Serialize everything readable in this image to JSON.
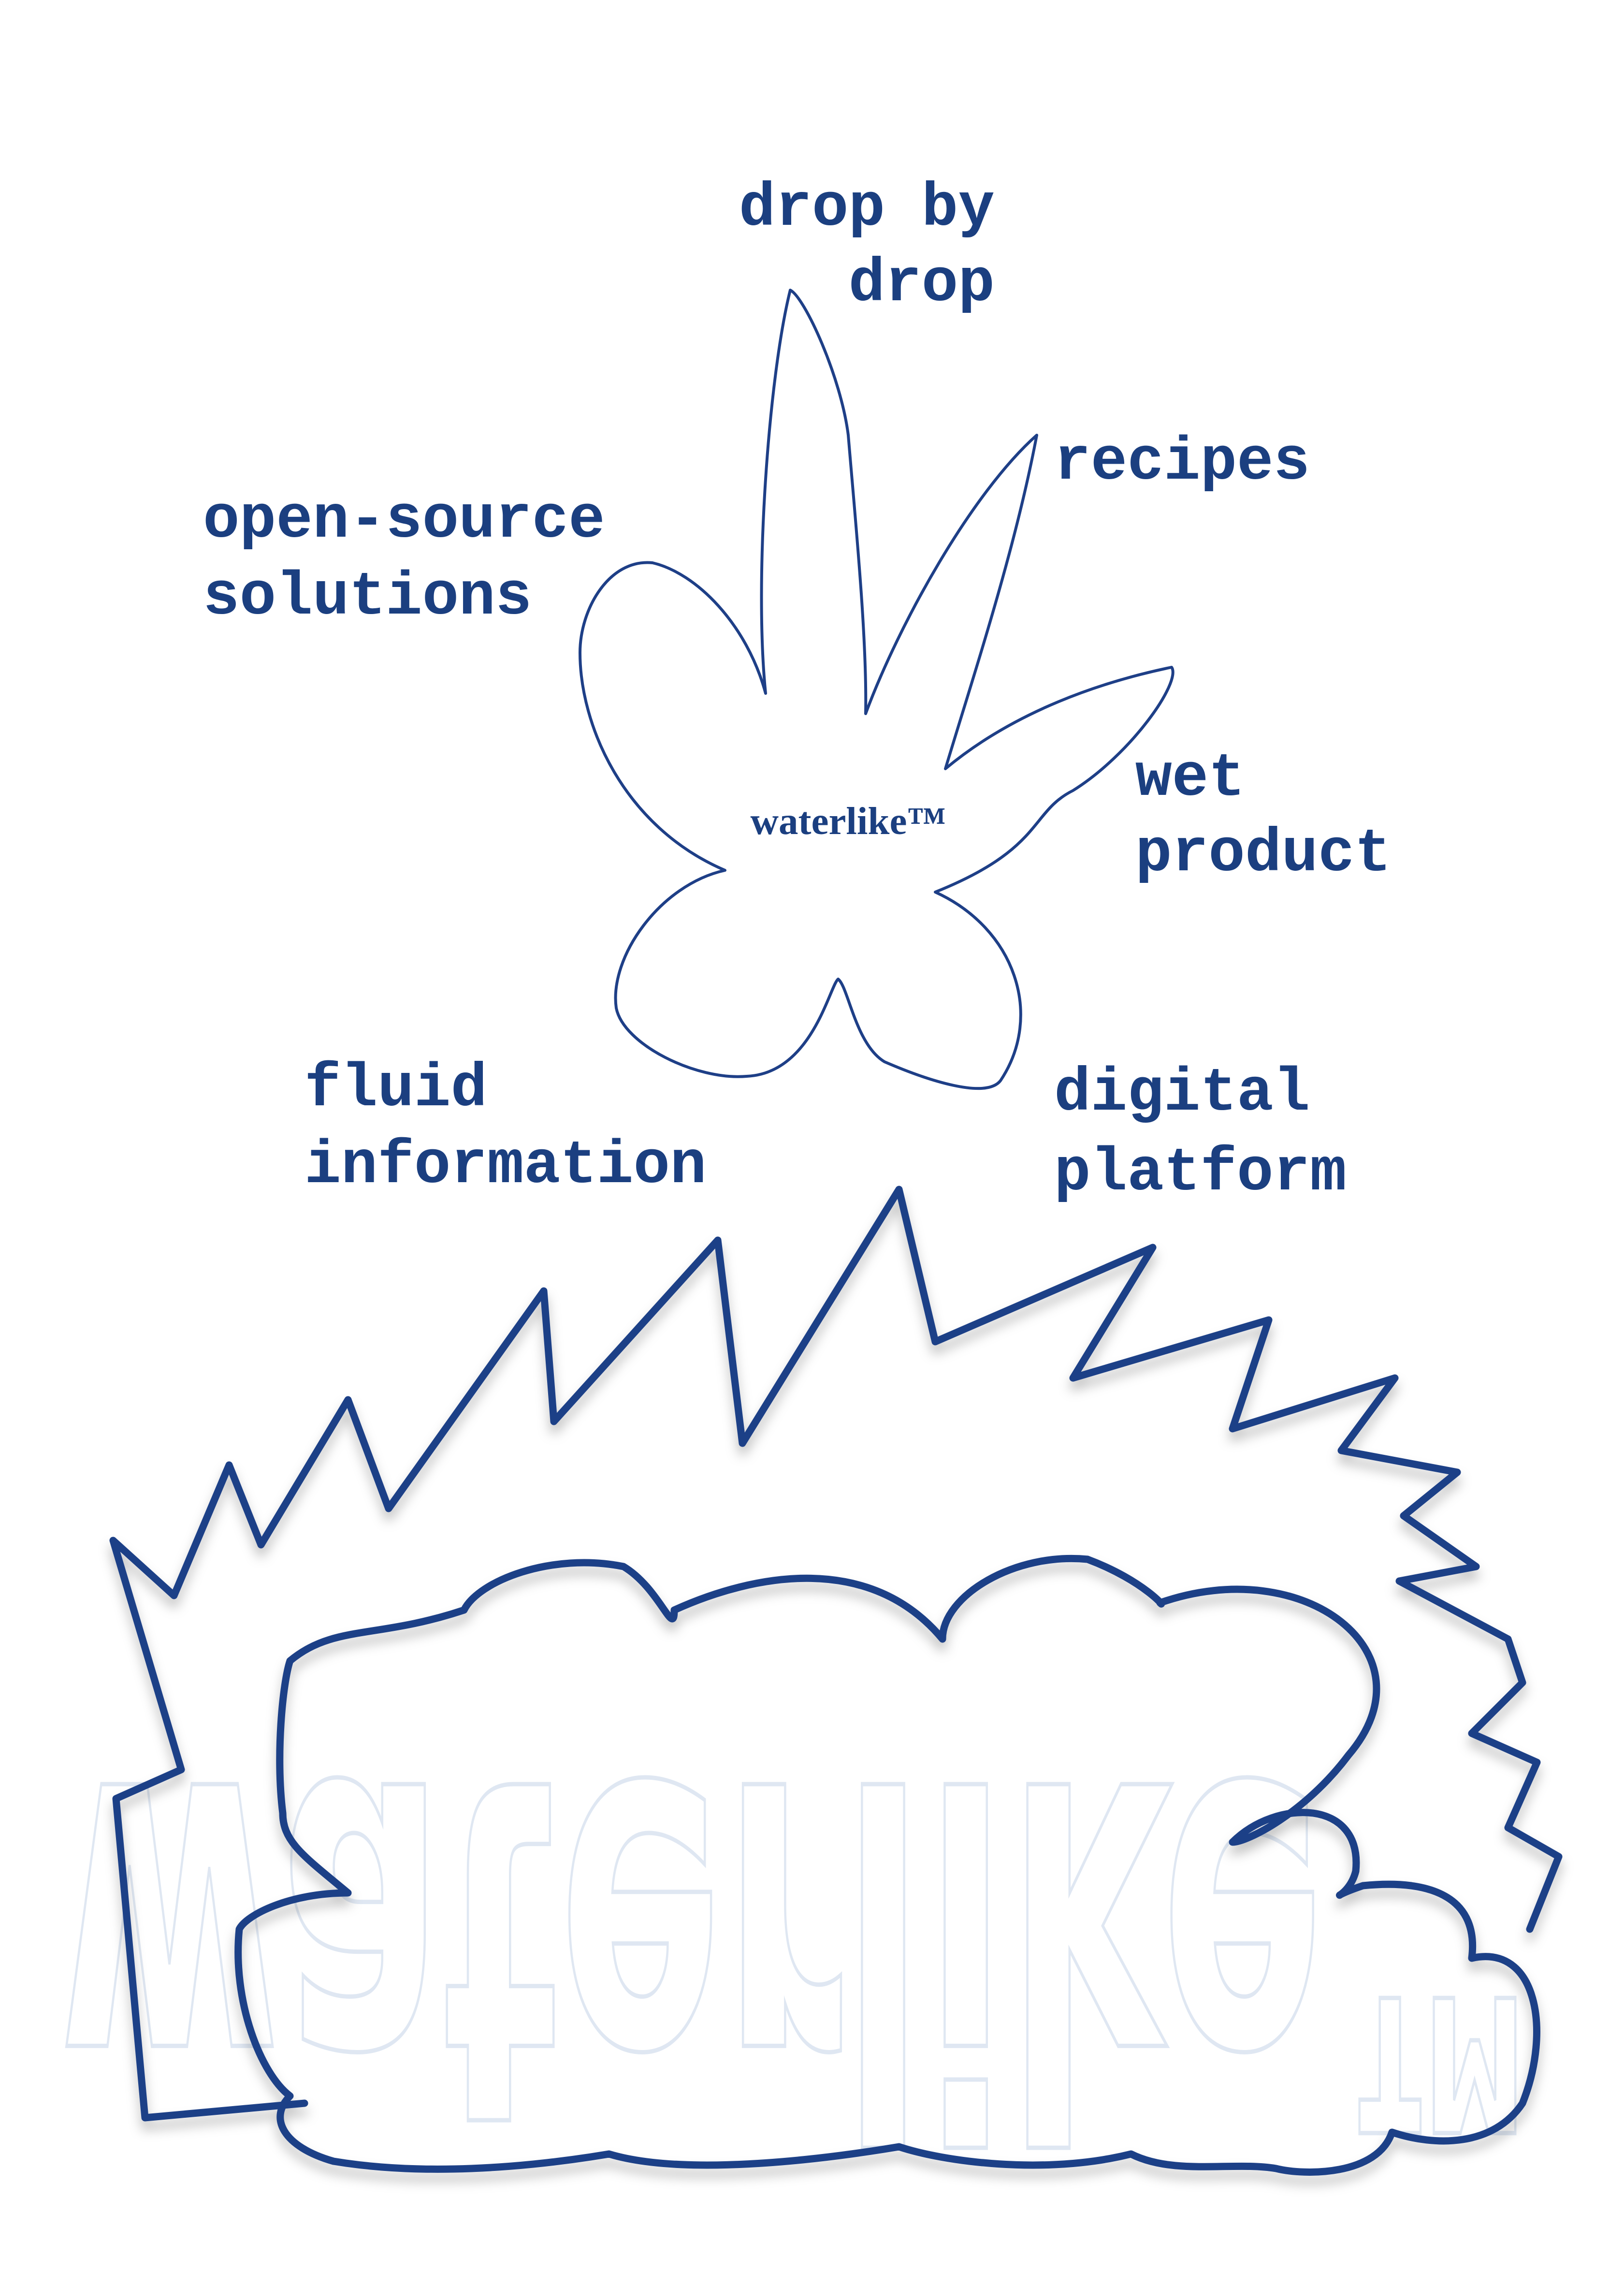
{
  "center_label": "waterlike™",
  "watermark": "waterlike™",
  "labels": [
    {
      "lines": [
        "drop by",
        "drop"
      ]
    },
    {
      "lines": [
        "recipes"
      ]
    },
    {
      "lines": [
        "open-source",
        "solutions"
      ]
    },
    {
      "lines": [
        "wet",
        "product"
      ]
    },
    {
      "lines": [
        "fluid",
        "information"
      ]
    },
    {
      "lines": [
        "digital",
        "platform"
      ]
    }
  ]
}
